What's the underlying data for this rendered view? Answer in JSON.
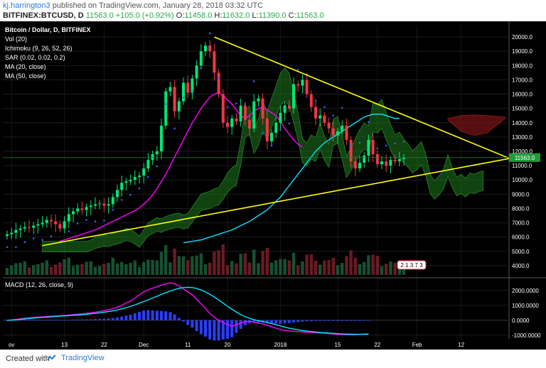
{
  "header": {
    "author": "kj.harrington3",
    "published": "published on TradingView.com, January 28, 2018 03:32 UTC",
    "symbol": "BITFINEX:BTCUSD, D",
    "last": "11563.0",
    "change": "+105.0 (+0.92%)",
    "o_label": "O:",
    "o_value": "11458.0",
    "h_label": "H:",
    "h_value": "11632.0",
    "l_label": "L:",
    "l_value": "11390.0",
    "c_label": "C:",
    "c_value": "11563.0"
  },
  "legend": [
    "Bitcoin / Dollar, D, BITFINEX",
    "Vol (20)",
    "Ichimoku (9, 26, 52, 26)",
    "SAR (0.02, 0.02, 0.2)",
    "MA (20, close)",
    "MA (50, close)"
  ],
  "macd_label": "MACD (12, 26, close, 9)",
  "vol_label": "2 1 3 7 3",
  "footer": {
    "created": "Created with",
    "brand": "TradingView"
  },
  "colors": {
    "background": "#000000",
    "up": "#00e676",
    "down": "#f23645",
    "trendline": "#ffff00",
    "ma20": "#ff00ff",
    "ma50": "#00e5ff",
    "sar": "#3d5afe",
    "cloud_bull": "#1f7a1f",
    "cloud_bear": "#7a1414"
  },
  "chart_data": [
    {
      "type": "line",
      "title": "Bitcoin / Dollar, D, BITFINEX",
      "ylim": [
        3200,
        20800
      ],
      "y_ticks": [
        4000.0,
        5000.0,
        6000.0,
        7000.0,
        8000.0,
        9000.0,
        10000.0,
        11000.0,
        12000.0,
        13000.0,
        14000.0,
        15000.0,
        16000.0,
        17000.0,
        18000.0,
        19000.0,
        20000.0
      ],
      "x_ticks": [
        {
          "day": 1,
          "label": "ov"
        },
        {
          "day": 13,
          "label": "13"
        },
        {
          "day": 22,
          "label": "22"
        },
        {
          "day": 31,
          "label": "Dec"
        },
        {
          "day": 41,
          "label": "11"
        },
        {
          "day": 50,
          "label": "20"
        },
        {
          "day": 62,
          "label": "2018"
        },
        {
          "day": 75,
          "label": "15"
        },
        {
          "day": 84,
          "label": "22"
        },
        {
          "day": 93,
          "label": "Feb"
        },
        {
          "day": 103,
          "label": "12"
        }
      ],
      "price_label": "11563.0",
      "close": [
        6200,
        6300,
        6500,
        6600,
        6700,
        6650,
        6800,
        6900,
        7000,
        7200,
        7100,
        6900,
        6600,
        7100,
        7600,
        7800,
        8000,
        7900,
        8100,
        8200,
        8300,
        8350,
        8200,
        8300,
        8800,
        9300,
        9800,
        9900,
        10000,
        10200,
        10300,
        10800,
        11400,
        11800,
        12000,
        13800,
        16200,
        16500,
        14800,
        15500,
        16800,
        16100,
        17100,
        18000,
        19000,
        19400,
        19000,
        17500,
        16000,
        14000,
        13700,
        14300,
        14100,
        15200,
        14200,
        13600,
        15500,
        15700,
        14300,
        12700,
        13300,
        14000,
        14700,
        15200,
        15000,
        16700,
        16600,
        17000,
        16000,
        15100,
        14300,
        14500,
        14000,
        13600,
        13100,
        13400,
        13800,
        12800,
        11300,
        10800,
        11200,
        11700,
        12800,
        11800,
        11100,
        11300,
        11000,
        11400,
        11300,
        11458,
        11563
      ],
      "series": [
        {
          "name": "MA (20, close)",
          "values": [
            5700,
            5800,
            5900,
            6000,
            6100,
            6200,
            6300,
            6400,
            6500,
            6650,
            6800,
            6950,
            7100,
            7250,
            7400,
            7550,
            7700,
            7850,
            8050,
            8300,
            8600,
            8950,
            9400,
            9900,
            10400,
            11000,
            11600,
            12200,
            12800,
            13400,
            14000,
            14500,
            15000,
            15400,
            15800,
            16000,
            16100,
            15900,
            15600,
            15300,
            14900,
            14500,
            14300,
            14500,
            14800,
            15000,
            15100,
            14900,
            14700,
            14500,
            14100,
            13600,
            13200,
            12800,
            12500,
            12300
          ]
        },
        {
          "name": "MA (50, close)",
          "values": [
            5600,
            5650,
            5700,
            5750,
            5800,
            5900,
            6000,
            6100,
            6200,
            6300,
            6400,
            6500,
            6650,
            6800,
            6950,
            7100,
            7300,
            7500,
            7700,
            7900,
            8200,
            8500,
            8800,
            9200,
            9600,
            10000,
            10400,
            10800,
            11200,
            11600,
            12000,
            12300,
            12600,
            12800,
            13000,
            13200,
            13400,
            13600,
            13800,
            14000,
            14200,
            14400,
            14500,
            14600,
            14600,
            14600,
            14500,
            14400,
            14300,
            14300
          ]
        }
      ],
      "triangle": {
        "upper": {
          "from": {
            "day": 47,
            "price": 20000
          },
          "to": {
            "day": 114,
            "price": 11500
          }
        },
        "lower": {
          "from": {
            "day": 8,
            "price": 5400
          },
          "to": {
            "day": 114,
            "price": 11500
          }
        }
      }
    },
    {
      "type": "bar",
      "title": "MACD (12, 26, close, 9)",
      "ylim": [
        -1250,
        2800
      ],
      "y_ticks": [
        -1000.0,
        0.0,
        1000.0,
        2000.0
      ],
      "series": [
        {
          "name": "MACD",
          "values": [
            0,
            20,
            50,
            90,
            130,
            160,
            190,
            210,
            230,
            250,
            270,
            290,
            300,
            320,
            340,
            370,
            400,
            430,
            460,
            500,
            540,
            590,
            640,
            700,
            780,
            880,
            1000,
            1150,
            1300,
            1500,
            1700,
            1900,
            2050,
            2150,
            2250,
            2350,
            2450,
            2500,
            2450,
            2300,
            2100,
            1900,
            1700,
            1400,
            1100,
            800,
            450,
            200,
            0,
            -150,
            -300,
            -400,
            -300,
            -200,
            -100,
            -80,
            -120,
            -180,
            -250,
            -330,
            -430,
            -530,
            -620,
            -680,
            -720,
            -740,
            -760,
            -780,
            -800,
            -820,
            -840,
            -860,
            -880,
            -900,
            -920,
            -940,
            -960,
            -970,
            -980,
            -970,
            -950,
            -930,
            -910
          ]
        },
        {
          "name": "Signal",
          "values": [
            0,
            10,
            30,
            60,
            90,
            120,
            150,
            170,
            190,
            210,
            230,
            250,
            270,
            290,
            310,
            330,
            350,
            370,
            400,
            430,
            460,
            500,
            540,
            580,
            630,
            690,
            760,
            840,
            930,
            1030,
            1140,
            1250,
            1370,
            1490,
            1610,
            1730,
            1850,
            1960,
            2060,
            2140,
            2190,
            2210,
            2190,
            2130,
            2030,
            1900,
            1740,
            1560,
            1360,
            1150,
            940,
            740,
            550,
            380,
            240,
            130,
            40,
            -30,
            -90,
            -150,
            -220,
            -300,
            -380,
            -460,
            -530,
            -590,
            -640,
            -690,
            -730,
            -760,
            -790,
            -820,
            -840,
            -860,
            -880,
            -900,
            -920,
            -930,
            -940,
            -945,
            -945,
            -940,
            -935
          ]
        }
      ],
      "histogram": [
        0,
        10,
        20,
        30,
        40,
        40,
        40,
        40,
        40,
        40,
        40,
        40,
        30,
        30,
        30,
        40,
        50,
        60,
        60,
        70,
        80,
        90,
        100,
        120,
        150,
        190,
        240,
        310,
        370,
        470,
        560,
        650,
        680,
        660,
        640,
        620,
        600,
        540,
        390,
        160,
        -90,
        -310,
        -490,
        -730,
        -930,
        -1100,
        -1290,
        -1360,
        -1360,
        -1300,
        -1240,
        -1140,
        -850,
        -580,
        -340,
        -210,
        -160,
        -150,
        -160,
        -180,
        -210,
        -230,
        -240,
        -220,
        -190,
        -150,
        -120,
        -90,
        -70,
        -60,
        -50,
        -40,
        -40,
        -40,
        -40,
        -40,
        -40,
        -40,
        -40,
        -25,
        -5,
        10,
        25
      ]
    }
  ]
}
